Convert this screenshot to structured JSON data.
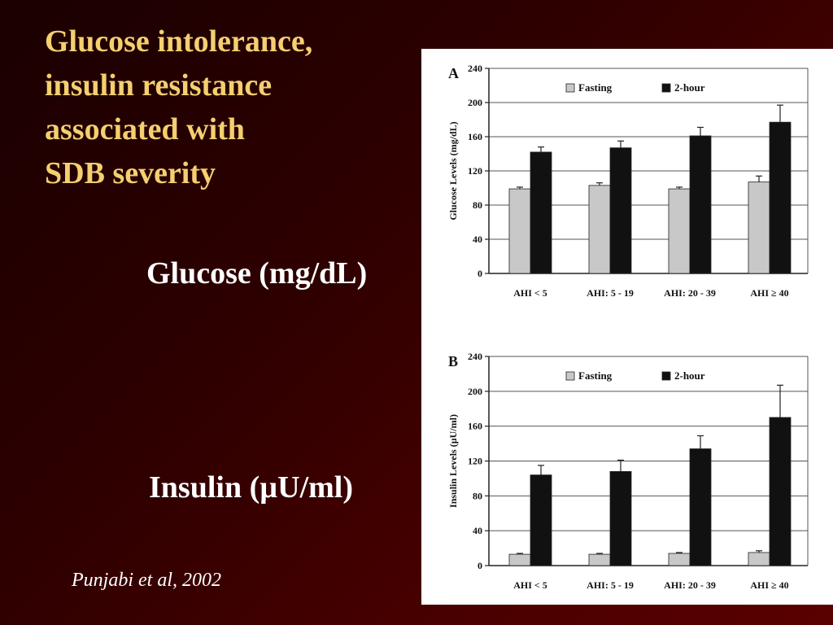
{
  "slide": {
    "title_lines": [
      "Glucose intolerance,",
      "insulin resistance",
      "associated with",
      "SDB severity"
    ],
    "glucose_label": "Glucose (mg/dL)",
    "insulin_label": "Insulin (µU/ml)",
    "citation": "Punjabi et al, 2002"
  },
  "colors": {
    "background": "#3a0000",
    "title": "#f5cf70",
    "fasting_bar": "#c8c8c8",
    "two_hour_bar": "#111111"
  },
  "chart_data": [
    {
      "type": "bar",
      "panel_letter": "A",
      "categories": [
        "AHI < 5",
        "AHI: 5 - 19",
        "AHI: 20 - 39",
        "AHI ≥ 40"
      ],
      "series": [
        {
          "name": "Fasting",
          "values": [
            99,
            103,
            99,
            107
          ],
          "errors": [
            2,
            3,
            2,
            7
          ]
        },
        {
          "name": "2-hour",
          "values": [
            142,
            147,
            161,
            177
          ],
          "errors": [
            6,
            8,
            10,
            20
          ]
        }
      ],
      "title": "",
      "xlabel": "",
      "ylabel": "Glucose Levels (mg/dL)",
      "ylim": [
        0,
        240
      ],
      "yticks": [
        0,
        40,
        80,
        120,
        160,
        200,
        240
      ],
      "grid": true,
      "legend": "top"
    },
    {
      "type": "bar",
      "panel_letter": "B",
      "categories": [
        "AHI < 5",
        "AHI: 5 - 19",
        "AHI: 20 - 39",
        "AHI ≥ 40"
      ],
      "series": [
        {
          "name": "Fasting",
          "values": [
            13,
            13,
            14,
            15
          ],
          "errors": [
            1,
            1,
            1,
            2
          ]
        },
        {
          "name": "2-hour",
          "values": [
            104,
            108,
            134,
            170
          ],
          "errors": [
            11,
            13,
            15,
            37
          ]
        }
      ],
      "title": "",
      "xlabel": "",
      "ylabel": "Insulin Levels (µU/ml)",
      "ylim": [
        0,
        240
      ],
      "yticks": [
        0,
        40,
        80,
        120,
        160,
        200,
        240
      ],
      "grid": true,
      "legend": "top"
    }
  ]
}
